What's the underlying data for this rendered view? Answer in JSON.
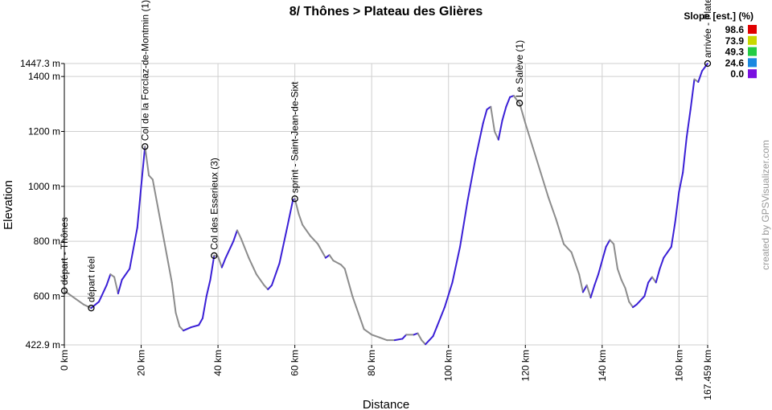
{
  "chart_data": {
    "type": "line",
    "title": "8/ Thônes > Plateau des Glières",
    "x_label": "Distance",
    "y_label": "Elevation",
    "watermark": "created by GPSVisualizer.com",
    "x": [
      0,
      3,
      5,
      7,
      9,
      11,
      12,
      13,
      14,
      15,
      17,
      19,
      20,
      21,
      22,
      23,
      24,
      26,
      28,
      29,
      30,
      31,
      33,
      35,
      36,
      37,
      38,
      39,
      40,
      41,
      42,
      44,
      45,
      46,
      48,
      50,
      52,
      53,
      54,
      56,
      58,
      59.5,
      60,
      61,
      62,
      64,
      66,
      68,
      69,
      70,
      72,
      73,
      74,
      75,
      76,
      77,
      78,
      80,
      82,
      84,
      86,
      88,
      89,
      91,
      92,
      93,
      94,
      95,
      96,
      97,
      99,
      101,
      103,
      105,
      107,
      109,
      110,
      111,
      112,
      113,
      114,
      115,
      116,
      117,
      118,
      118.5,
      120,
      122,
      124,
      126,
      128,
      130,
      132,
      133,
      134,
      135,
      136,
      137,
      138,
      139,
      141,
      142,
      143,
      144,
      145,
      146,
      147,
      148,
      149,
      151,
      152,
      153,
      154,
      155,
      156,
      157,
      158,
      159,
      160,
      161,
      162,
      163,
      164,
      165,
      166,
      167.459
    ],
    "values": [
      620,
      590,
      570,
      557,
      580,
      640,
      680,
      670,
      610,
      660,
      700,
      850,
      1000,
      1145,
      1040,
      1025,
      950,
      800,
      650,
      540,
      490,
      475,
      487,
      495,
      520,
      600,
      660,
      748,
      745,
      705,
      740,
      800,
      840,
      810,
      740,
      680,
      640,
      625,
      640,
      720,
      850,
      950,
      955,
      900,
      860,
      820,
      790,
      740,
      750,
      730,
      715,
      700,
      650,
      600,
      560,
      520,
      480,
      460,
      450,
      440,
      440,
      445,
      460,
      460,
      465,
      440,
      425,
      440,
      455,
      490,
      560,
      650,
      780,
      950,
      1100,
      1230,
      1280,
      1290,
      1200,
      1170,
      1240,
      1290,
      1325,
      1330,
      1310,
      1303,
      1230,
      1140,
      1050,
      960,
      880,
      790,
      760,
      720,
      680,
      615,
      640,
      595,
      640,
      680,
      780,
      805,
      790,
      700,
      660,
      630,
      580,
      560,
      570,
      600,
      650,
      670,
      650,
      700,
      740,
      760,
      780,
      870,
      980,
      1050,
      1180,
      1280,
      1390,
      1380,
      1420,
      1447.3
    ],
    "color": "#3a1fd6",
    "descent_color": "#8c8c8c",
    "xlim": [
      0,
      167.459
    ],
    "ylim": [
      422.9,
      1447.3
    ],
    "xticks": [
      {
        "value": 0,
        "label": "0 km"
      },
      {
        "value": 20,
        "label": "20 km"
      },
      {
        "value": 40,
        "label": "40 km"
      },
      {
        "value": 60,
        "label": "60 km"
      },
      {
        "value": 80,
        "label": "80 km"
      },
      {
        "value": 100,
        "label": "100 km"
      },
      {
        "value": 120,
        "label": "120 km"
      },
      {
        "value": 140,
        "label": "140 km"
      },
      {
        "value": 160,
        "label": "160 km"
      },
      {
        "value": 167.459,
        "label": "167.459 km"
      }
    ],
    "yticks": [
      {
        "value": 422.9,
        "label": "422.9 m"
      },
      {
        "value": 600,
        "label": "600 m"
      },
      {
        "value": 800,
        "label": "800 m"
      },
      {
        "value": 1000,
        "label": "1000 m"
      },
      {
        "value": 1200,
        "label": "1200 m"
      },
      {
        "value": 1400,
        "label": "1400 m"
      },
      {
        "value": 1447.3,
        "label": "1447.3 m"
      }
    ],
    "grid": true,
    "annotations": [
      {
        "x": 0,
        "y": 620,
        "text": "départ - Thônes"
      },
      {
        "x": 7,
        "y": 557,
        "text": "départ réel"
      },
      {
        "x": 21,
        "y": 1145,
        "text": "Col de la Forclaz-de-Montmin (1)"
      },
      {
        "x": 39,
        "y": 748,
        "text": "Col des Esserieux (3)"
      },
      {
        "x": 60,
        "y": 955,
        "text": "sprint - Saint-Jean-de-Sixt"
      },
      {
        "x": 118.5,
        "y": 1303,
        "text": "Le Salève (1)"
      },
      {
        "x": 167.459,
        "y": 1447.3,
        "text": "arrivée - Plateau des Glières"
      }
    ],
    "slope_legend": {
      "title": "Slope [est.] (%)",
      "values": [
        98.6,
        73.9,
        49.3,
        24.6,
        0
      ],
      "value_labels": [
        "98.6",
        "73.9",
        "49.3",
        "24.6",
        "0.0"
      ],
      "colors": [
        "#e00000",
        "#c8d800",
        "#22cc44",
        "#1a88e0",
        "#7a10e0"
      ]
    }
  }
}
